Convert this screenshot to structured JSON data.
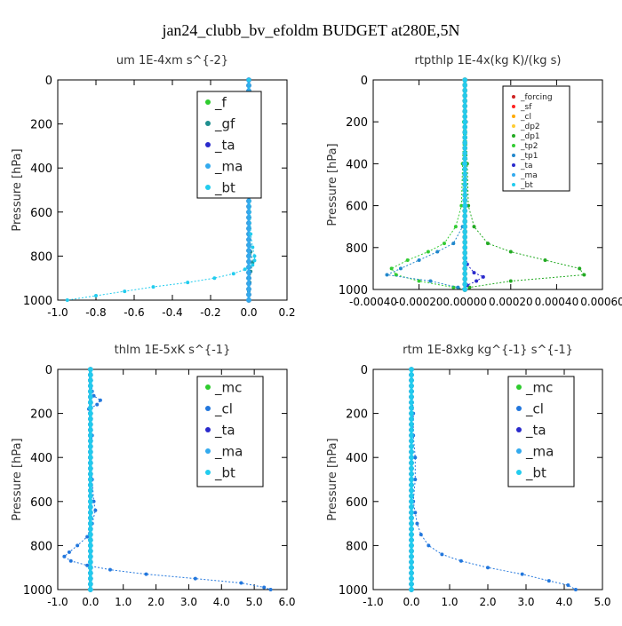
{
  "title": "jan24_clubb_bv_efoldm  BUDGET at280E,5N",
  "colors": {
    "f": "#2ecc2e",
    "gf": "#1f8f8f",
    "ta": "#2a2acc",
    "ma": "#33aaee",
    "bt": "#22ccee",
    "forcing": "#cc2222",
    "sf": "#ff2222",
    "cl": "#ffaa00",
    "dp2": "#ffcc33",
    "dp1": "#22aa22",
    "tp2": "#33cc33",
    "tp1": "#2288cc",
    "mc": "#2ecc2e",
    "clb": "#2277dd"
  },
  "chart_data": [
    {
      "type": "line",
      "title": "um   1E-4xm s^{-2}",
      "ylabel": "Pressure [hPa]",
      "xlim": [
        -1.0,
        0.2
      ],
      "ylim": [
        1000,
        0
      ],
      "xticks": [
        "-1.0",
        "-0.8",
        "-0.6",
        "-0.4",
        "-0.2",
        "0.0",
        "0.2"
      ],
      "yticks": [
        "0",
        "200",
        "400",
        "600",
        "800",
        "1000"
      ],
      "legend": [
        "_f",
        "_gf",
        "_ta",
        "_ma",
        "_bt"
      ],
      "series": [
        {
          "key": "f",
          "name": "_f",
          "y": [
            0,
            100,
            200,
            300,
            400,
            500,
            600,
            700,
            800,
            900,
            1000
          ],
          "x": [
            0,
            0,
            0,
            0,
            0,
            0,
            0,
            0,
            0,
            0,
            0
          ]
        },
        {
          "key": "gf",
          "name": "_gf",
          "y": [
            0,
            100,
            130,
            150,
            200,
            300,
            500,
            700,
            780,
            830,
            870,
            920,
            960,
            1000
          ],
          "x": [
            0,
            0.005,
            0.02,
            0.01,
            0.005,
            0,
            0,
            0.005,
            0.01,
            0.02,
            0.01,
            0.005,
            0,
            0
          ]
        },
        {
          "key": "ta",
          "name": "_ta",
          "y": [
            0,
            200,
            400,
            600,
            800,
            1000
          ],
          "x": [
            0,
            0,
            0,
            0,
            0,
            0
          ]
        },
        {
          "key": "ma",
          "name": "_ma",
          "y": [
            0,
            200,
            400,
            600,
            800,
            1000
          ],
          "x": [
            0,
            0,
            0,
            0,
            0,
            0
          ]
        },
        {
          "key": "bt",
          "name": "_bt",
          "y": [
            0,
            100,
            150,
            300,
            500,
            700,
            760,
            800,
            820,
            840,
            860,
            880,
            900,
            920,
            940,
            960,
            980,
            1000
          ],
          "x": [
            0,
            0.005,
            0.01,
            0.005,
            0.005,
            0.01,
            0.02,
            0.03,
            0.03,
            0.02,
            -0.02,
            -0.08,
            -0.18,
            -0.32,
            -0.5,
            -0.65,
            -0.8,
            -0.95
          ]
        }
      ]
    },
    {
      "type": "line",
      "title": "rtpthlp   1E-4x(kg K)/(kg s)",
      "ylabel": "Pressure [hPa]",
      "xlim": [
        -0.0004,
        0.0006
      ],
      "ylim": [
        1000,
        0
      ],
      "xticks": [
        "-0.00040",
        "-0.00020",
        "0.00000",
        "0.00020",
        "0.00040",
        "0.00060"
      ],
      "yticks": [
        "0",
        "200",
        "400",
        "600",
        "800",
        "1000"
      ],
      "legend": [
        "_forcing",
        "_sf",
        "_cl",
        "_dp2",
        "_dp1",
        "_tp2",
        "_tp1",
        "_ta",
        "_ma",
        "_bt"
      ],
      "series": [
        {
          "key": "forcing",
          "name": "_forcing",
          "y": [
            0,
            200,
            400,
            600,
            800,
            1000
          ],
          "x": [
            0,
            0,
            0,
            0,
            0,
            0
          ]
        },
        {
          "key": "sf",
          "name": "_sf",
          "y": [
            0,
            200,
            400,
            600,
            800,
            1000
          ],
          "x": [
            0,
            0,
            0,
            0,
            0,
            0
          ]
        },
        {
          "key": "cl",
          "name": "_cl",
          "y": [
            0,
            200,
            400,
            600,
            800,
            1000
          ],
          "x": [
            0,
            0,
            0,
            0,
            0,
            0
          ]
        },
        {
          "key": "dp2",
          "name": "_dp2",
          "y": [
            0,
            200,
            400,
            600,
            800,
            1000
          ],
          "x": [
            0,
            0,
            0,
            0,
            0,
            0
          ]
        },
        {
          "key": "dp1",
          "name": "_dp1",
          "y": [
            0,
            200,
            400,
            600,
            700,
            780,
            820,
            860,
            900,
            930,
            960,
            990,
            1000
          ],
          "x": [
            0,
            5e-06,
            1e-05,
            1.5e-05,
            4e-05,
            0.0001,
            0.0002,
            0.00035,
            0.0005,
            0.00052,
            0.0002,
            2e-05,
            0
          ]
        },
        {
          "key": "tp2",
          "name": "_tp2",
          "y": [
            0,
            200,
            400,
            600,
            700,
            780,
            820,
            860,
            900,
            930,
            960,
            990,
            1000
          ],
          "x": [
            0,
            -5e-06,
            -1e-05,
            -1.5e-05,
            -4e-05,
            -9e-05,
            -0.00016,
            -0.00025,
            -0.00032,
            -0.0003,
            -0.0002,
            -5e-05,
            0
          ]
        },
        {
          "key": "tp1",
          "name": "_tp1",
          "y": [
            0,
            200,
            400,
            600,
            700,
            780,
            820,
            860,
            900,
            930,
            960,
            990,
            1000
          ],
          "x": [
            0,
            5e-06,
            -5e-06,
            5e-06,
            -1e-05,
            -5e-05,
            -0.00012,
            -0.0002,
            -0.00028,
            -0.00034,
            -0.00015,
            -3e-05,
            0
          ]
        },
        {
          "key": "ta",
          "name": "_ta",
          "y": [
            0,
            800,
            880,
            920,
            940,
            960,
            980,
            1000
          ],
          "x": [
            0,
            0,
            1e-05,
            4e-05,
            8e-05,
            5e-05,
            1e-05,
            0
          ]
        },
        {
          "key": "ma",
          "name": "_ma",
          "y": [
            0,
            200,
            400,
            600,
            800,
            1000
          ],
          "x": [
            0,
            0,
            0,
            0,
            0,
            0
          ]
        },
        {
          "key": "bt",
          "name": "_bt",
          "y": [
            0,
            200,
            400,
            600,
            800,
            1000
          ],
          "x": [
            0,
            0,
            0,
            0,
            0,
            0
          ]
        }
      ]
    },
    {
      "type": "line",
      "title": "thlm   1E-5xK s^{-1}",
      "ylabel": "Pressure [hPa]",
      "xlim": [
        -1.0,
        6.0
      ],
      "ylim": [
        1000,
        0
      ],
      "xticks": [
        "-1.0",
        "0.0",
        "1.0",
        "2.0",
        "3.0",
        "4.0",
        "5.0",
        "6.0"
      ],
      "yticks": [
        "0",
        "200",
        "400",
        "600",
        "800",
        "1000"
      ],
      "legend": [
        "_mc",
        "_cl",
        "_ta",
        "_ma",
        "_bt"
      ],
      "series": [
        {
          "key": "mc",
          "name": "_mc",
          "y": [
            0,
            200,
            400,
            600,
            800,
            1000
          ],
          "x": [
            0,
            0,
            0,
            0,
            0,
            0
          ]
        },
        {
          "key": "clb",
          "name": "_cl",
          "y": [
            0,
            100,
            120,
            140,
            160,
            180,
            200,
            300,
            400,
            500,
            600,
            640,
            700,
            760,
            800,
            830,
            850,
            870,
            890,
            910,
            930,
            950,
            970,
            990,
            1000
          ],
          "x": [
            0.0,
            0.05,
            0.1,
            0.3,
            0.2,
            -0.05,
            0.0,
            0.05,
            0.0,
            0.05,
            0.1,
            0.15,
            0.05,
            -0.1,
            -0.4,
            -0.65,
            -0.8,
            -0.6,
            -0.1,
            0.6,
            1.7,
            3.2,
            4.6,
            5.3,
            5.5
          ]
        },
        {
          "key": "ta",
          "name": "_ta",
          "y": [
            0,
            200,
            400,
            600,
            800,
            1000
          ],
          "x": [
            0,
            0,
            0,
            0,
            0,
            0
          ]
        },
        {
          "key": "ma",
          "name": "_ma",
          "y": [
            0,
            200,
            400,
            600,
            800,
            1000
          ],
          "x": [
            0,
            0,
            0,
            0,
            0,
            0
          ]
        },
        {
          "key": "bt",
          "name": "_bt",
          "y": [
            0,
            200,
            400,
            600,
            800,
            1000
          ],
          "x": [
            0,
            0,
            0,
            0,
            0,
            0
          ]
        }
      ]
    },
    {
      "type": "line",
      "title": "rtm   1E-8xkg kg^{-1} s^{-1}",
      "ylabel": "Pressure [hPa]",
      "xlim": [
        -1.0,
        5.0
      ],
      "ylim": [
        1000,
        0
      ],
      "xticks": [
        "-1.0",
        "0.0",
        "1.0",
        "2.0",
        "3.0",
        "4.0",
        "5.0"
      ],
      "yticks": [
        "0",
        "200",
        "400",
        "600",
        "800",
        "1000"
      ],
      "legend": [
        "_mc",
        "_cl",
        "_ta",
        "_ma",
        "_bt"
      ],
      "series": [
        {
          "key": "mc",
          "name": "_mc",
          "y": [
            0,
            200,
            400,
            600,
            800,
            1000
          ],
          "x": [
            0,
            0,
            0,
            0,
            0,
            0
          ]
        },
        {
          "key": "clb",
          "name": "_cl",
          "y": [
            0,
            100,
            200,
            300,
            400,
            500,
            600,
            650,
            700,
            750,
            800,
            840,
            870,
            900,
            930,
            960,
            980,
            1000
          ],
          "x": [
            0.0,
            0.02,
            0.05,
            0.05,
            0.1,
            0.1,
            0.05,
            0.1,
            0.15,
            0.25,
            0.45,
            0.8,
            1.3,
            2.0,
            2.9,
            3.6,
            4.1,
            4.3
          ]
        },
        {
          "key": "ta",
          "name": "_ta",
          "y": [
            0,
            200,
            400,
            600,
            800,
            1000
          ],
          "x": [
            0,
            0,
            0,
            0,
            0,
            0
          ]
        },
        {
          "key": "ma",
          "name": "_ma",
          "y": [
            0,
            200,
            400,
            600,
            800,
            1000
          ],
          "x": [
            0,
            0,
            0,
            0,
            0,
            0
          ]
        },
        {
          "key": "bt",
          "name": "_bt",
          "y": [
            0,
            200,
            400,
            600,
            800,
            1000
          ],
          "x": [
            0,
            0,
            0,
            0,
            0,
            0
          ]
        }
      ]
    }
  ]
}
